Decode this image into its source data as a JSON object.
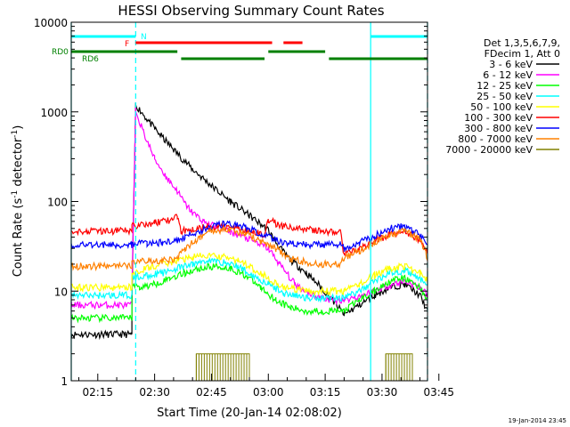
{
  "colors": {
    "background": "#ffffff",
    "axes": "#000000",
    "attenuator_state": "#00ffff",
    "flare_flag": "#ff0000",
    "decimation_flag": "#008000"
  },
  "chart_data": {
    "type": "line",
    "title": "HESSI Observing Summary Count Rates",
    "xlabel": "Start Time (20-Jan-14 02:08:02)",
    "ylabel_parts": [
      "Count Rate (s",
      "-1",
      " detector",
      "-1",
      ")"
    ],
    "yscale": "log",
    "ylim": [
      1,
      10000
    ],
    "xlim": [
      8,
      102
    ],
    "x_unit": "minutes after 02:00 UT, 20-Jan-2014",
    "x_ticks": [
      {
        "value": 15,
        "label": "02:15"
      },
      {
        "value": 30,
        "label": "02:30"
      },
      {
        "value": 45,
        "label": "02:45"
      },
      {
        "value": 60,
        "label": "03:00"
      },
      {
        "value": 75,
        "label": "03:15"
      },
      {
        "value": 90,
        "label": "03:30"
      },
      {
        "value": 105,
        "label": "03:45"
      }
    ],
    "y_ticks": [
      {
        "value": 1,
        "label": "1"
      },
      {
        "value": 10,
        "label": "10"
      },
      {
        "value": 100,
        "label": "100"
      },
      {
        "value": 1000,
        "label": "1000"
      },
      {
        "value": 10000,
        "label": "10000"
      }
    ],
    "legend_header": [
      "Det 1,3,5,6,7,9,",
      "FDecim 1, Att 0"
    ],
    "legend_position": "right",
    "series": [
      {
        "name": "3 - 6 keV",
        "color": "#000000",
        "points": [
          [
            8,
            3.3
          ],
          [
            24,
            3.3
          ],
          [
            24,
            7
          ],
          [
            25,
            1200
          ],
          [
            30,
            650
          ],
          [
            35,
            380
          ],
          [
            40,
            230
          ],
          [
            45,
            150
          ],
          [
            50,
            100
          ],
          [
            55,
            70
          ],
          [
            60,
            48
          ],
          [
            62,
            35
          ],
          [
            65,
            24
          ],
          [
            70,
            16
          ],
          [
            74,
            11
          ],
          [
            78,
            7
          ],
          [
            80,
            5.5
          ],
          [
            84,
            7
          ],
          [
            88,
            9
          ],
          [
            92,
            11
          ],
          [
            96,
            12
          ],
          [
            100,
            9
          ],
          [
            102,
            6
          ]
        ]
      },
      {
        "name": "6 - 12 keV",
        "color": "#ff00ff",
        "points": [
          [
            8,
            7
          ],
          [
            24,
            7
          ],
          [
            24,
            10
          ],
          [
            25,
            1050
          ],
          [
            27,
            600
          ],
          [
            30,
            300
          ],
          [
            33,
            190
          ],
          [
            36,
            130
          ],
          [
            38,
            95
          ],
          [
            40,
            75
          ],
          [
            43,
            60
          ],
          [
            46,
            52
          ],
          [
            50,
            46
          ],
          [
            55,
            38
          ],
          [
            60,
            30
          ],
          [
            63,
            20
          ],
          [
            67,
            12
          ],
          [
            72,
            9
          ],
          [
            76,
            8
          ],
          [
            80,
            8
          ],
          [
            85,
            9
          ],
          [
            90,
            11
          ],
          [
            96,
            13
          ],
          [
            100,
            11
          ],
          [
            102,
            9
          ]
        ]
      },
      {
        "name": "12 - 25 keV",
        "color": "#00ff00",
        "points": [
          [
            8,
            5
          ],
          [
            24,
            5
          ],
          [
            24,
            12
          ],
          [
            26,
            11
          ],
          [
            30,
            12
          ],
          [
            34,
            14
          ],
          [
            38,
            16
          ],
          [
            42,
            18
          ],
          [
            46,
            19
          ],
          [
            50,
            18
          ],
          [
            54,
            15
          ],
          [
            58,
            11
          ],
          [
            62,
            8
          ],
          [
            66,
            6.5
          ],
          [
            70,
            6
          ],
          [
            74,
            6
          ],
          [
            80,
            6
          ],
          [
            84,
            8
          ],
          [
            88,
            10
          ],
          [
            92,
            13
          ],
          [
            96,
            14
          ],
          [
            100,
            11
          ],
          [
            102,
            8
          ]
        ]
      },
      {
        "name": "25 - 50 keV",
        "color": "#00ffff",
        "points": [
          [
            8,
            9
          ],
          [
            24,
            9
          ],
          [
            24,
            14
          ],
          [
            28,
            15
          ],
          [
            32,
            16
          ],
          [
            36,
            18
          ],
          [
            40,
            20
          ],
          [
            44,
            22
          ],
          [
            48,
            21
          ],
          [
            52,
            19
          ],
          [
            56,
            15
          ],
          [
            60,
            12
          ],
          [
            64,
            9.5
          ],
          [
            70,
            8.5
          ],
          [
            76,
            8.5
          ],
          [
            80,
            8.5
          ],
          [
            84,
            10
          ],
          [
            88,
            13
          ],
          [
            92,
            16
          ],
          [
            96,
            17
          ],
          [
            100,
            14
          ],
          [
            102,
            11
          ]
        ]
      },
      {
        "name": "50 - 100 keV",
        "color": "#ffff00",
        "points": [
          [
            8,
            11
          ],
          [
            24,
            11
          ],
          [
            24,
            16
          ],
          [
            28,
            18
          ],
          [
            32,
            20
          ],
          [
            36,
            22
          ],
          [
            40,
            24
          ],
          [
            44,
            25
          ],
          [
            48,
            24
          ],
          [
            52,
            22
          ],
          [
            56,
            18
          ],
          [
            60,
            14
          ],
          [
            64,
            11
          ],
          [
            70,
            10
          ],
          [
            76,
            10
          ],
          [
            80,
            10
          ],
          [
            84,
            12
          ],
          [
            88,
            15
          ],
          [
            92,
            18
          ],
          [
            96,
            19
          ],
          [
            100,
            16
          ],
          [
            102,
            13
          ]
        ]
      },
      {
        "name": "100 - 300 keV",
        "color": "#ff0000",
        "points": [
          [
            8,
            47
          ],
          [
            24,
            47
          ],
          [
            24,
            54
          ],
          [
            26,
            55
          ],
          [
            30,
            58
          ],
          [
            34,
            62
          ],
          [
            36,
            67
          ],
          [
            37,
            47
          ],
          [
            40,
            50
          ],
          [
            44,
            53
          ],
          [
            48,
            52
          ],
          [
            52,
            50
          ],
          [
            56,
            46
          ],
          [
            59,
            42
          ],
          [
            60,
            63
          ],
          [
            62,
            57
          ],
          [
            64,
            53
          ],
          [
            68,
            50
          ],
          [
            72,
            48
          ],
          [
            76,
            46
          ],
          [
            79,
            45
          ],
          [
            80,
            26
          ],
          [
            84,
            30
          ],
          [
            88,
            36
          ],
          [
            92,
            43
          ],
          [
            96,
            47
          ],
          [
            100,
            37
          ],
          [
            102,
            26
          ]
        ]
      },
      {
        "name": "300 - 800 keV",
        "color": "#0000ff",
        "points": [
          [
            8,
            33
          ],
          [
            24,
            33
          ],
          [
            24,
            34
          ],
          [
            28,
            34
          ],
          [
            32,
            35
          ],
          [
            36,
            36
          ],
          [
            38,
            40
          ],
          [
            42,
            47
          ],
          [
            46,
            55
          ],
          [
            50,
            56
          ],
          [
            54,
            52
          ],
          [
            58,
            43
          ],
          [
            62,
            37
          ],
          [
            66,
            34
          ],
          [
            70,
            33
          ],
          [
            74,
            33
          ],
          [
            79,
            33
          ],
          [
            80,
            30
          ],
          [
            84,
            35
          ],
          [
            88,
            42
          ],
          [
            92,
            50
          ],
          [
            96,
            53
          ],
          [
            100,
            42
          ],
          [
            102,
            32
          ]
        ]
      },
      {
        "name": "800 - 7000 keV",
        "color": "#ff8000",
        "points": [
          [
            8,
            19
          ],
          [
            24,
            19
          ],
          [
            24,
            22
          ],
          [
            28,
            22
          ],
          [
            32,
            22
          ],
          [
            36,
            23
          ],
          [
            38,
            30
          ],
          [
            42,
            40
          ],
          [
            46,
            48
          ],
          [
            50,
            48
          ],
          [
            54,
            44
          ],
          [
            58,
            36
          ],
          [
            62,
            30
          ],
          [
            66,
            23
          ],
          [
            70,
            21
          ],
          [
            74,
            20
          ],
          [
            79,
            20
          ],
          [
            80,
            24
          ],
          [
            84,
            28
          ],
          [
            88,
            35
          ],
          [
            92,
            43
          ],
          [
            96,
            47
          ],
          [
            100,
            38
          ],
          [
            102,
            24
          ]
        ]
      },
      {
        "name": "7000 - 20000 keV",
        "color": "#808000",
        "points": [
          [
            8,
            1
          ],
          [
            41,
            1
          ],
          [
            41,
            2
          ],
          [
            55,
            2
          ],
          [
            55,
            1
          ],
          [
            91,
            1
          ],
          [
            91,
            2
          ],
          [
            98,
            2
          ],
          [
            98,
            1
          ],
          [
            102,
            1
          ]
        ]
      }
    ],
    "state_bars": [
      {
        "label": "N",
        "color": "#00ffff",
        "segments": [
          [
            8,
            25
          ],
          [
            87,
            102
          ]
        ]
      },
      {
        "label": "F",
        "color": "#ff0000",
        "segments": [
          [
            25,
            61
          ],
          [
            64,
            69
          ]
        ]
      },
      {
        "label": "RD0",
        "color": "#008000",
        "segments": [
          [
            8,
            36
          ],
          [
            60,
            75
          ]
        ]
      },
      {
        "label": "RD6",
        "color": "#008000",
        "segments": [
          [
            37,
            59
          ],
          [
            76,
            102
          ]
        ]
      }
    ],
    "vertical_markers": [
      {
        "x": 8,
        "style": "solid",
        "color": "#00ffff"
      },
      {
        "x": 25,
        "style": "dashed",
        "color": "#00ffff"
      },
      {
        "x": 87,
        "style": "solid",
        "color": "#00ffff"
      },
      {
        "x": 102,
        "style": "dashed",
        "color": "#00ffff"
      }
    ]
  },
  "footer": {
    "date_stamp": "19-Jan-2014 23:45"
  }
}
